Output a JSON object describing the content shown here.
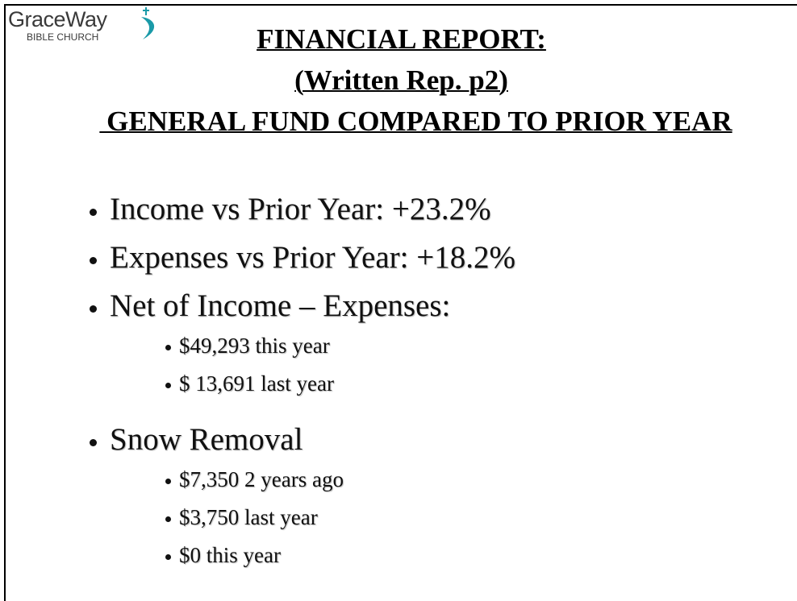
{
  "logo": {
    "name": "GraceWay",
    "subtitle": "BIBLE CHURCH"
  },
  "title": [
    "FINANCIAL REPORT:",
    "(Written Rep. p2)",
    " GENERAL FUND COMPARED TO PRIOR YEAR"
  ],
  "bullets": [
    {
      "text": "Income vs Prior Year: +23.2%",
      "items": []
    },
    {
      "text": "Expenses vs Prior Year: +18.2%",
      "items": []
    },
    {
      "text": "Net of Income – Expenses:",
      "items": [
        "$49,293 this year",
        "$ 13,691 last year"
      ]
    },
    {
      "text": "Snow Removal",
      "items": [
        "$7,350 2 years ago",
        "$3,750 last year",
        "$0 this year"
      ]
    }
  ]
}
